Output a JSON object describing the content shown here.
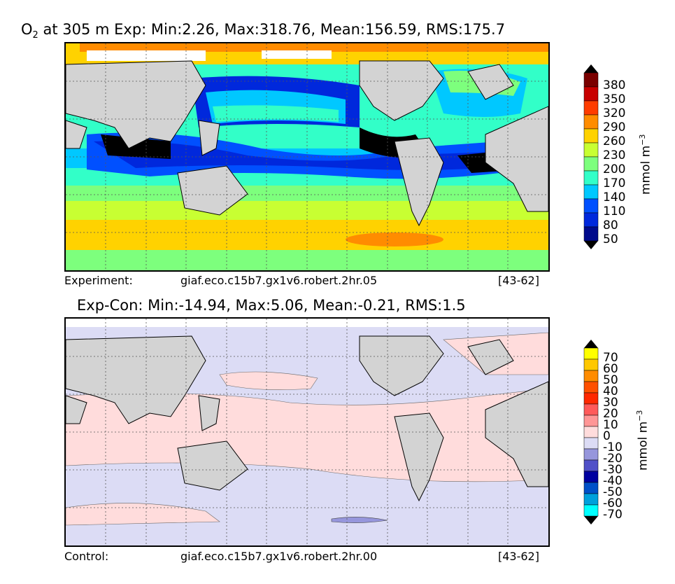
{
  "panel_top": {
    "title_base": "O",
    "title_sub": "2",
    "title_rest": " at 305 m Exp: Min:2.26, Max:318.76, Mean:156.59, RMS:175.7",
    "caption_left": "Experiment:",
    "caption_mid": "giaf.eco.c15b7.gx1v6.robert.2hr.05",
    "caption_right": "[43-62]",
    "colorbar": {
      "unit_text": "mmol m",
      "unit_exp": "−3",
      "ticks": [
        "380",
        "350",
        "320",
        "290",
        "260",
        "230",
        "200",
        "170",
        "140",
        "110",
        "80",
        "50"
      ],
      "colors": [
        "#7a0000",
        "#c80000",
        "#ff3c00",
        "#ff8c00",
        "#ffd200",
        "#c8ff32",
        "#7dff7d",
        "#32ffc8",
        "#00c8ff",
        "#0050ff",
        "#0028dc",
        "#000a8c"
      ],
      "over_color": "#000000",
      "under_color": "#000000"
    }
  },
  "panel_bottom": {
    "title": "Exp-Con: Min:-14.94, Max:5.06, Mean:-0.21, RMS:1.5",
    "caption_left": "Control:",
    "caption_mid": "giaf.eco.c15b7.gx1v6.robert.2hr.00",
    "caption_right": "[43-62]",
    "colorbar": {
      "unit_text": "mmol m",
      "unit_exp": "−3",
      "ticks": [
        "70",
        "60",
        "50",
        "40",
        "30",
        "20",
        "10",
        "0",
        "-10",
        "-20",
        "-30",
        "-40",
        "-50",
        "-60",
        "-70"
      ],
      "colors": [
        "#ffff00",
        "#ffc800",
        "#ff8c00",
        "#ff5000",
        "#ff2800",
        "#ff5a5a",
        "#ff9696",
        "#ffdcdc",
        "#dcdcf5",
        "#9696dc",
        "#5050c8",
        "#0000a0",
        "#0050c8",
        "#00a0dc",
        "#00ffff"
      ],
      "over_color": "#000000",
      "under_color": "#000000"
    }
  },
  "colors": {
    "land": "#d3d3d3",
    "sea_ice": "#ffffff",
    "diff_pos": "#ffdcdc",
    "diff_neg": "#dcdcf5",
    "diff_strong_neg": "#9696dc"
  }
}
